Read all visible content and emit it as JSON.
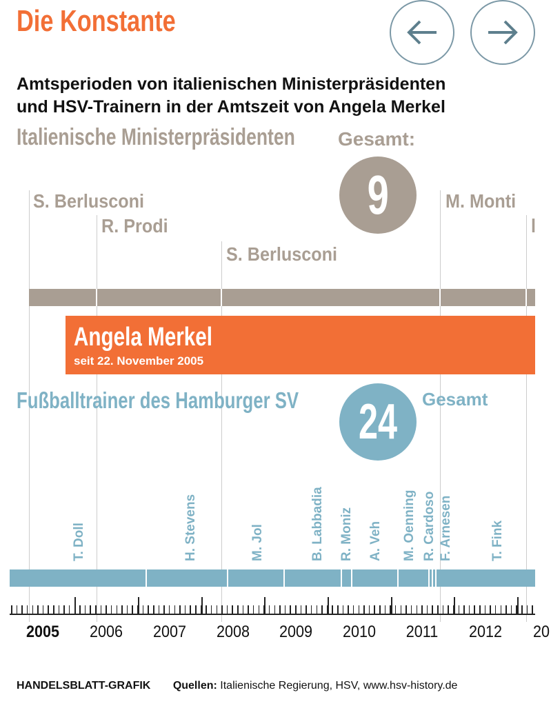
{
  "title": "Die Konstante",
  "nav": {
    "prev": "arrow-left",
    "next": "arrow-right"
  },
  "subtitle_line1": "Amtsperioden von italienischen Ministerpräsidenten",
  "subtitle_line2": "und HSV-Trainern in der Amtszeit von Angela Merkel",
  "italy": {
    "heading": "Italienische Ministerpräsidenten",
    "total_label": "Gesamt:",
    "total": "9",
    "pms": [
      {
        "name": "S. Berlusconi"
      },
      {
        "name": "R. Prodi"
      },
      {
        "name": "S. Berlusconi"
      },
      {
        "name": "M. Monti"
      },
      {
        "name": "l"
      }
    ]
  },
  "merkel": {
    "name": "Angela Merkel",
    "since": "seit 22. November 2005"
  },
  "hsv": {
    "heading": "Fußballtrainer des Hamburger SV",
    "total_label": "Gesamt",
    "total": "24",
    "trainers": [
      "T. Doll",
      "H. Stevens",
      "M. Jol",
      "B. Labbadia",
      "R. Moniz",
      "A. Veh",
      "M. Oenning",
      "R. Cardoso",
      "F. Arnesen",
      "T. Fink"
    ]
  },
  "years": [
    "2005",
    "2006",
    "2007",
    "2008",
    "2009",
    "2010",
    "2011",
    "2012",
    "20"
  ],
  "footer": {
    "brand": "HANDELSBLATT-GRAFIK",
    "sources_label": "Quellen:",
    "sources": "Italienische Regierung, HSV, www.hsv-history.de"
  },
  "colors": {
    "orange": "#f26f36",
    "taupe": "#a99e93",
    "blue": "#7fb2c5"
  }
}
